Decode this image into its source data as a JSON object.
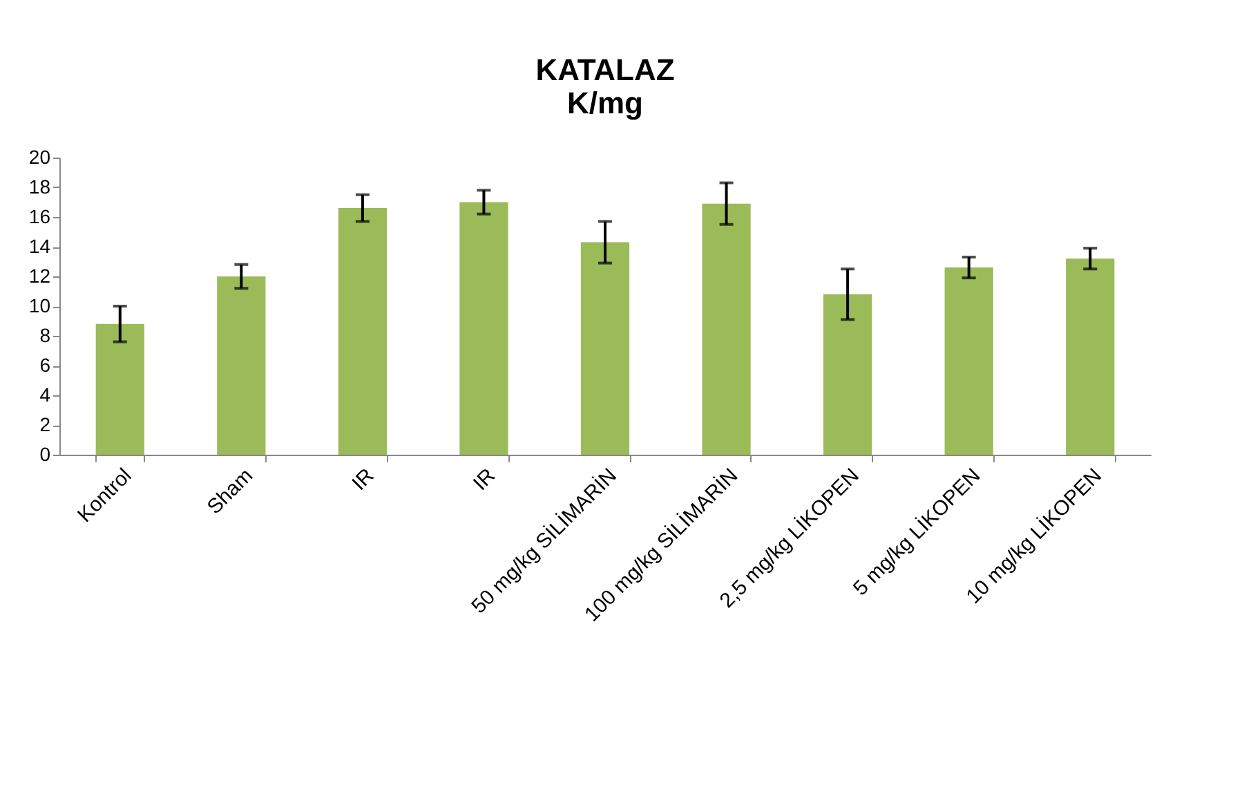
{
  "chart_data": {
    "type": "bar",
    "title": [
      "KATALAZ",
      "K/mg"
    ],
    "categories": [
      "Kontrol",
      "Sham",
      "IR",
      "IR",
      "50 mg/kg SİLİMARİN",
      "100 mg/kg SİLİMARİN",
      "2,5 mg/kg LİKOPEN",
      "5 mg/kg LİKOPEN",
      "10 mg/kg LİKOPEN"
    ],
    "values": [
      8.8,
      12.0,
      16.6,
      17.0,
      14.3,
      16.9,
      10.8,
      12.6,
      13.2
    ],
    "errors": [
      1.2,
      0.8,
      0.9,
      0.8,
      1.4,
      1.4,
      1.7,
      0.7,
      0.7
    ],
    "color": "#9bbb59",
    "ylim": [
      0,
      20
    ],
    "yticks": [
      0,
      2,
      4,
      6,
      8,
      10,
      12,
      14,
      16,
      18,
      20
    ],
    "grid": false
  }
}
